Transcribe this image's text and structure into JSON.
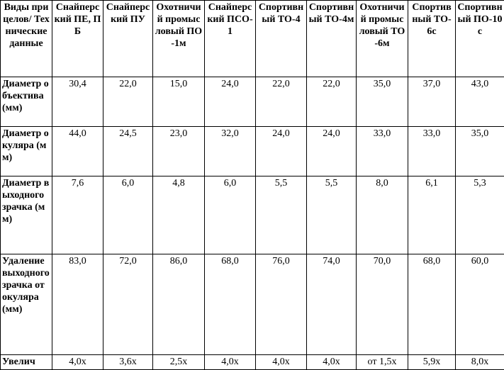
{
  "table": {
    "header": [
      "Виды прицелов/ Технические данные",
      "Снайперский ПЕ, ПБ",
      "Снайперский ПУ",
      "Охотничий промысловый ПО-1м",
      "Снайперский ПСО-1",
      "Спортивный ТО-4",
      "Спортивный ТО-4м",
      "Охотничий промысловый ТО-6м",
      "Спортивный ТО-6с",
      "Спортивный ПО-10с"
    ],
    "rows": [
      [
        "Диаметр объектива (мм)",
        "30,4",
        "22,0",
        "15,0",
        "24,0",
        "22,0",
        "22,0",
        "35,0",
        "37,0",
        "43,0"
      ],
      [
        "Диаметр окуляра (мм)",
        "44,0",
        "24,5",
        "23,0",
        "32,0",
        "24,0",
        "24,0",
        "33,0",
        "33,0",
        "35,0"
      ],
      [
        "Диаметр выходного зрачка (мм)",
        "7,6",
        "6,0",
        "4,8",
        "6,0",
        "5,5",
        "5,5",
        "8,0",
        "6,1",
        "5,3"
      ],
      [
        "Удаление выходного зрачка от окуляра (мм)",
        "83,0",
        "72,0",
        "86,0",
        "68,0",
        "76,0",
        "74,0",
        "70,0",
        "68,0",
        "60,0"
      ],
      [
        "Увелич",
        "4,0x",
        "3,6x",
        "2,5x",
        "4,0x",
        "4,0x",
        "4,0x",
        "от 1,5x",
        "5,9x",
        "8,0x"
      ]
    ]
  }
}
